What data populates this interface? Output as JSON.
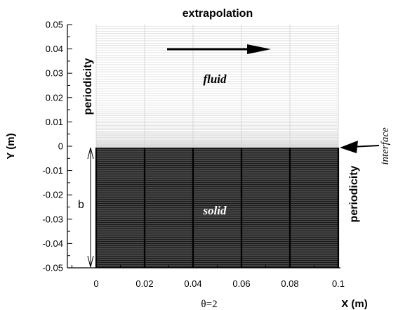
{
  "figure": {
    "title": "extrapolation",
    "x_axis_label": "X (m)",
    "y_axis_label": "Y (m)",
    "x_ticks": [
      "0",
      "0.02",
      "0.04",
      "0.06",
      "0.08",
      "0.1"
    ],
    "y_ticks": [
      "0.05",
      "0.04",
      "0.03",
      "0.02",
      "0.01",
      "0",
      "-0.01",
      "-0.02",
      "-0.03",
      "-0.04",
      "-0.05"
    ],
    "labels": {
      "fluid": "fluid",
      "solid": "solid",
      "periodicity_top": "periodicity",
      "periodicity_bottom": "periodicity",
      "interface": "interface",
      "b": "b",
      "theta": "θ=2"
    },
    "colors": {
      "fluid_mesh": "#cfcfcf",
      "solid_mesh": "#1a1a1a",
      "arrow": "#000000"
    }
  }
}
